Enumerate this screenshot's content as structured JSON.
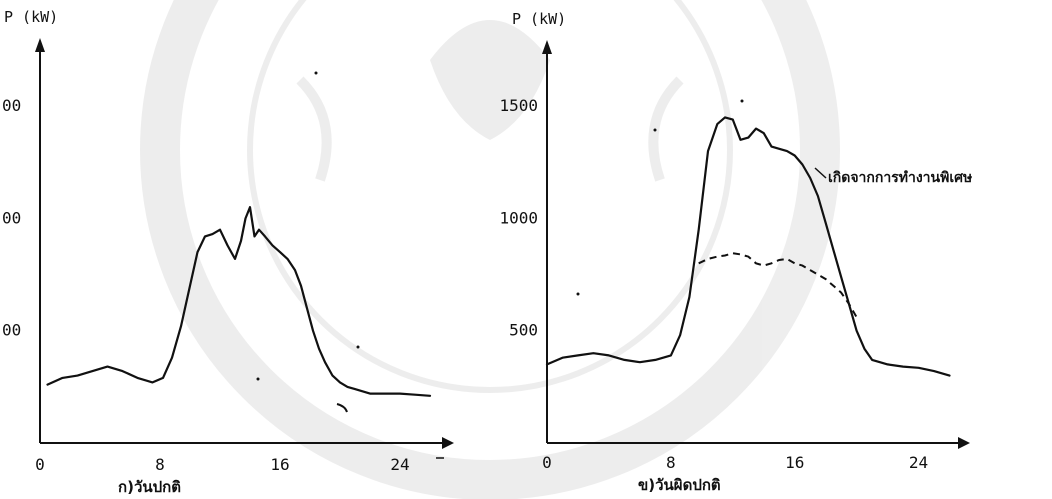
{
  "chart_data": [
    {
      "type": "line",
      "panel_label": "ก)วันปกติ",
      "ylabel": "P (kW)",
      "x_ticks": [
        {
          "value": 0,
          "label": "0"
        },
        {
          "value": 8,
          "label": "8"
        },
        {
          "value": 16,
          "label": "16"
        },
        {
          "value": 24,
          "label": "24"
        }
      ],
      "y_ticks": [
        {
          "value": 500,
          "label": "00"
        },
        {
          "value": 1000,
          "label": "00"
        },
        {
          "value": 1500,
          "label": "00"
        }
      ],
      "xlim": [
        0,
        26
      ],
      "ylim": [
        0,
        1750
      ],
      "series": [
        {
          "style": "solid",
          "x": [
            0.5,
            1.5,
            2.5,
            3.5,
            4.5,
            5.5,
            6.5,
            7.5,
            8.2,
            8.8,
            9.4,
            10,
            10.5,
            11,
            11.5,
            12,
            12.5,
            13,
            13.4,
            13.7,
            14,
            14.3,
            14.6,
            15,
            15.5,
            16,
            16.5,
            17,
            17.4,
            17.8,
            18.2,
            18.6,
            19,
            19.5,
            20,
            20.5,
            21,
            21.5,
            22,
            23,
            24,
            25,
            26
          ],
          "y": [
            260,
            290,
            300,
            320,
            340,
            320,
            290,
            270,
            290,
            380,
            520,
            700,
            850,
            920,
            930,
            950,
            880,
            820,
            900,
            1000,
            1050,
            920,
            950,
            920,
            880,
            850,
            820,
            770,
            700,
            600,
            500,
            420,
            360,
            300,
            270,
            250,
            240,
            230,
            220,
            220,
            220,
            215,
            210
          ]
        }
      ]
    },
    {
      "type": "line",
      "panel_label": "ข)วันผิดปกติ",
      "ylabel": "P (kW)",
      "annotation": "เกิดจากการทำงานพิเศษ",
      "x_ticks": [
        {
          "value": 0,
          "label": "0"
        },
        {
          "value": 8,
          "label": "8"
        },
        {
          "value": 16,
          "label": "16"
        },
        {
          "value": 24,
          "label": "24"
        }
      ],
      "y_ticks": [
        {
          "value": 500,
          "label": "500"
        },
        {
          "value": 1000,
          "label": "1000"
        },
        {
          "value": 1500,
          "label": "1500"
        }
      ],
      "xlim": [
        0,
        27
      ],
      "ylim": [
        0,
        1750
      ],
      "series": [
        {
          "style": "solid",
          "x": [
            0,
            1,
            2,
            3,
            4,
            5,
            6,
            7,
            8,
            8.6,
            9.2,
            9.8,
            10.4,
            11,
            11.5,
            12,
            12.5,
            13,
            13.5,
            14,
            14.5,
            15,
            15.5,
            16,
            16.5,
            17,
            17.5,
            18,
            18.5,
            19,
            19.5,
            20,
            20.5,
            21,
            21.5,
            22,
            23,
            24,
            25,
            26
          ],
          "y": [
            350,
            380,
            390,
            400,
            390,
            370,
            360,
            370,
            390,
            480,
            650,
            950,
            1300,
            1420,
            1450,
            1440,
            1350,
            1360,
            1400,
            1380,
            1320,
            1310,
            1300,
            1280,
            1240,
            1180,
            1100,
            980,
            860,
            740,
            620,
            500,
            420,
            370,
            360,
            350,
            340,
            335,
            320,
            300
          ]
        },
        {
          "style": "dashed",
          "x": [
            9.8,
            10.4,
            11,
            11.5,
            12,
            12.5,
            13,
            13.5,
            14,
            14.5,
            15,
            15.5,
            16,
            16.5,
            17,
            17.5,
            18,
            18.5,
            19,
            19.5,
            20
          ],
          "y": [
            800,
            820,
            830,
            835,
            845,
            840,
            830,
            800,
            790,
            800,
            815,
            820,
            800,
            790,
            770,
            750,
            730,
            700,
            670,
            620,
            560
          ]
        }
      ]
    }
  ]
}
